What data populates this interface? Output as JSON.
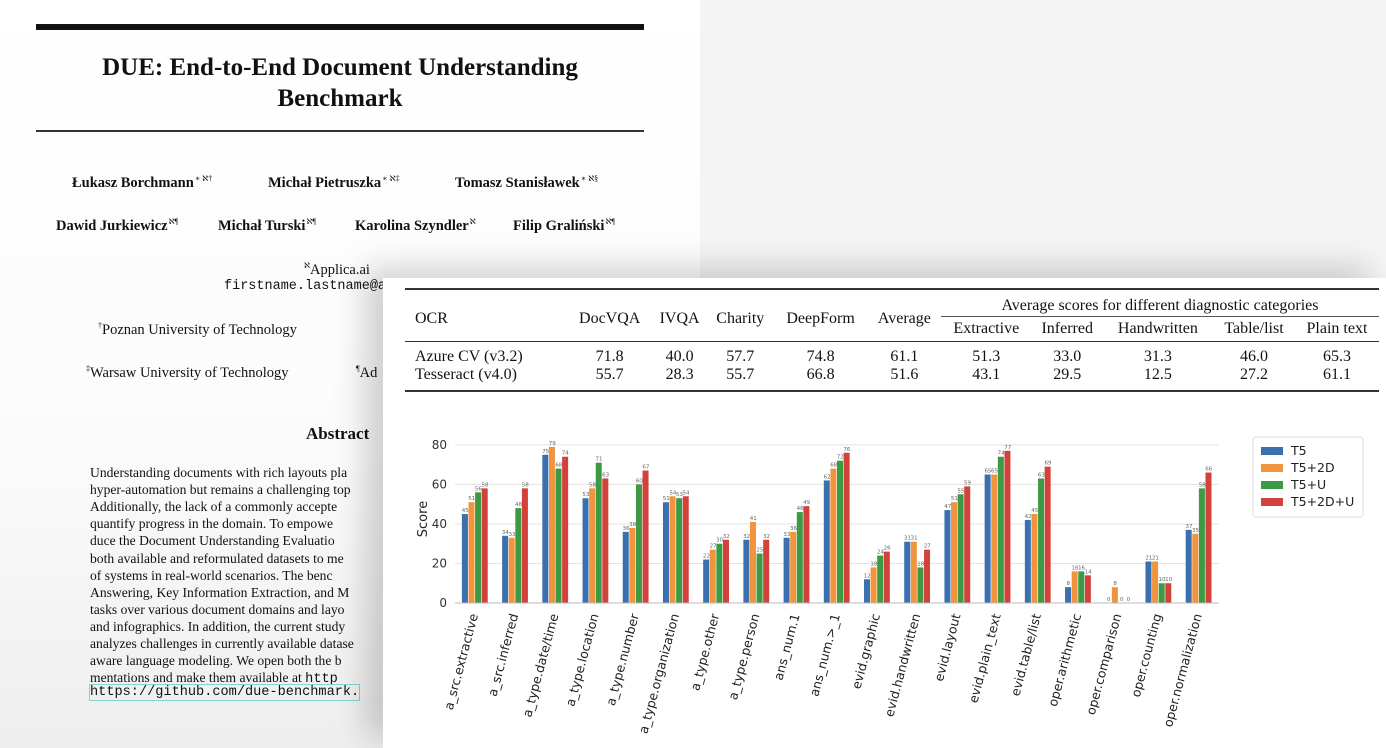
{
  "paper": {
    "title_line1": "DUE: End-to-End Document Understanding",
    "title_line2": "Benchmark",
    "authors_row1": [
      {
        "name": "Łukasz Borchmann",
        "marks": "∗ ℵ†"
      },
      {
        "name": "Michał Pietruszka",
        "marks": "∗ ℵ‡"
      },
      {
        "name": "Tomasz Stanisławek",
        "marks": "∗ ℵ§"
      }
    ],
    "authors_row2": [
      {
        "name": "Dawid Jurkiewicz",
        "marks": "ℵ¶"
      },
      {
        "name": "Michał Turski",
        "marks": "ℵ¶"
      },
      {
        "name": "Karolina Szyndler",
        "marks": "ℵ"
      },
      {
        "name": "Filip Graliński",
        "marks": "ℵ¶"
      }
    ],
    "affil_applica": "Applica.ai",
    "affil_applica_mark": "ℵ",
    "affil_email": "firstname.lastname@a",
    "affil_poznan": "Poznan University of Technology",
    "affil_poznan_mark": "†",
    "affil_warsaw": "Warsaw University of Technology",
    "affil_warsaw_mark": "‡",
    "affil_adam_fragment": "Ad",
    "affil_adam_mark": "¶",
    "abstract_heading": "Abstract",
    "abstract_lines": [
      "Understanding documents with rich layouts pla",
      "hyper-automation but remains a challenging top",
      "Additionally, the lack of a commonly accepte",
      "quantify progress in the domain.  To empowe",
      "duce the Document Understanding Evaluatio",
      "both available and reformulated datasets to me",
      "of systems in real-world scenarios.  The benc",
      "Answering, Key Information Extraction, and M",
      "tasks over various document domains and layo",
      "and infographics. In addition, the current study",
      "analyzes challenges in currently available datase",
      "aware language modeling. We open both the b",
      "mentations and make them available at "
    ],
    "abstract_mono_fragment": "http",
    "abstract_link": "https://github.com/due-benchmark."
  },
  "table": {
    "header_ocr": "OCR",
    "datasets": [
      "DocVQA",
      "IVQA",
      "Charity",
      "DeepForm",
      "Average"
    ],
    "group_header": "Average scores for different diagnostic categories",
    "categories": [
      "Extractive",
      "Inferred",
      "Handwritten",
      "Table/list",
      "Plain text"
    ],
    "rows": [
      {
        "ocr": "Azure CV (v3.2)",
        "values": [
          "71.8",
          "40.0",
          "57.7",
          "74.8",
          "61.1",
          "51.3",
          "33.0",
          "31.3",
          "46.0",
          "65.3"
        ]
      },
      {
        "ocr": "Tesseract (v4.0)",
        "values": [
          "55.7",
          "28.3",
          "55.7",
          "66.8",
          "51.6",
          "43.1",
          "29.5",
          "12.5",
          "27.2",
          "61.1"
        ]
      }
    ]
  },
  "chart_data": {
    "type": "bar",
    "title": "",
    "xlabel": "",
    "ylabel": "Score",
    "ylim": [
      0,
      85
    ],
    "yticks": [
      0,
      20,
      40,
      60,
      80
    ],
    "grid": true,
    "legend_position": "right",
    "categories": [
      "a_src.extractive",
      "a_src.inferred",
      "a_type.date/time",
      "a_type.location",
      "a_type.number",
      "a_type.organization",
      "a_type.other",
      "a_type.person",
      "ans_num.1",
      "ans_num.>_1",
      "evid.graphic",
      "evid.handwritten",
      "evid.layout",
      "evid.plain_text",
      "evid.table/list",
      "oper.arithmetic",
      "oper.comparison",
      "oper.counting",
      "oper.normalization"
    ],
    "series": [
      {
        "name": "T5",
        "color": "#3a6fb0",
        "values": [
          45,
          34,
          75,
          53,
          36,
          51,
          22,
          32,
          33,
          62,
          12,
          31,
          47,
          65,
          42,
          8,
          0,
          21,
          37
        ]
      },
      {
        "name": "T5+2D",
        "color": "#f0943d",
        "values": [
          51,
          33,
          79,
          58,
          38,
          54,
          27,
          41,
          36,
          68,
          18,
          31,
          51,
          65,
          45,
          16,
          8,
          21,
          35
        ]
      },
      {
        "name": "T5+U",
        "color": "#3c9a43",
        "values": [
          56,
          48,
          68,
          71,
          60,
          53,
          30,
          25,
          46,
          72,
          24,
          18,
          55,
          74,
          63,
          16,
          0,
          10,
          58
        ]
      },
      {
        "name": "T5+2D+U",
        "color": "#d2413a",
        "values": [
          58,
          58,
          74,
          63,
          67,
          54,
          32,
          32,
          49,
          76,
          26,
          27,
          59,
          77,
          69,
          14,
          0,
          10,
          66
        ]
      }
    ]
  }
}
